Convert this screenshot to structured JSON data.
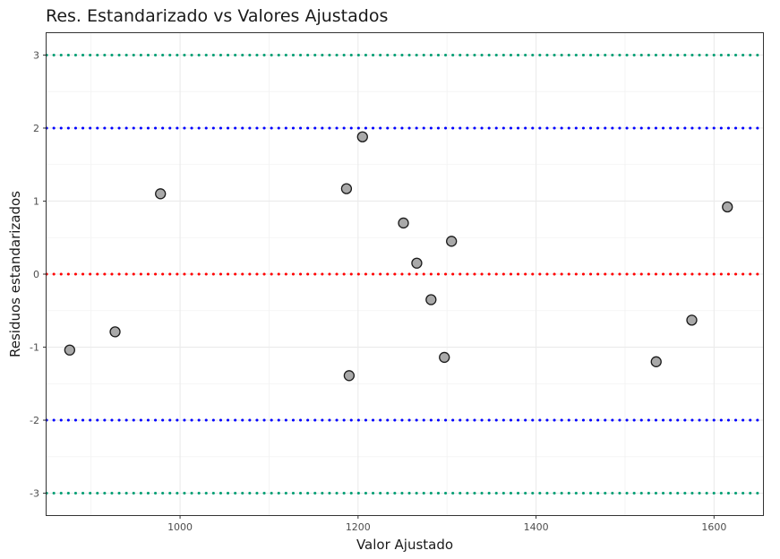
{
  "chart_data": {
    "type": "scatter",
    "title": "Res. Estandarizado vs Valores Ajustados",
    "xlabel": "Valor Ajustado",
    "ylabel": "Residuos estandarizados",
    "xlim": [
      850,
      1655
    ],
    "ylim": [
      -3.3,
      3.3
    ],
    "x_ticks": [
      1000,
      1200,
      1400,
      1600
    ],
    "y_ticks": [
      -3,
      -2,
      -1,
      0,
      1,
      2,
      3
    ],
    "grid": true,
    "points": [
      {
        "x": 876,
        "y": -1.04
      },
      {
        "x": 927,
        "y": -0.79
      },
      {
        "x": 978,
        "y": 1.1
      },
      {
        "x": 1187,
        "y": 1.17
      },
      {
        "x": 1190,
        "y": -1.39
      },
      {
        "x": 1205,
        "y": 1.88
      },
      {
        "x": 1251,
        "y": 0.7
      },
      {
        "x": 1266,
        "y": 0.15
      },
      {
        "x": 1282,
        "y": -0.35
      },
      {
        "x": 1297,
        "y": -1.14
      },
      {
        "x": 1305,
        "y": 0.45
      },
      {
        "x": 1535,
        "y": -1.2
      },
      {
        "x": 1575,
        "y": -0.63
      },
      {
        "x": 1615,
        "y": 0.92
      }
    ],
    "reference_lines": [
      {
        "y": 3,
        "color": "#009E73"
      },
      {
        "y": 2,
        "color": "#0000FF"
      },
      {
        "y": 0,
        "color": "#FF0000"
      },
      {
        "y": -2,
        "color": "#0000FF"
      },
      {
        "y": -3,
        "color": "#009E73"
      }
    ],
    "point_fill": "#A9A9A9",
    "point_stroke": "#1a1a1a"
  }
}
